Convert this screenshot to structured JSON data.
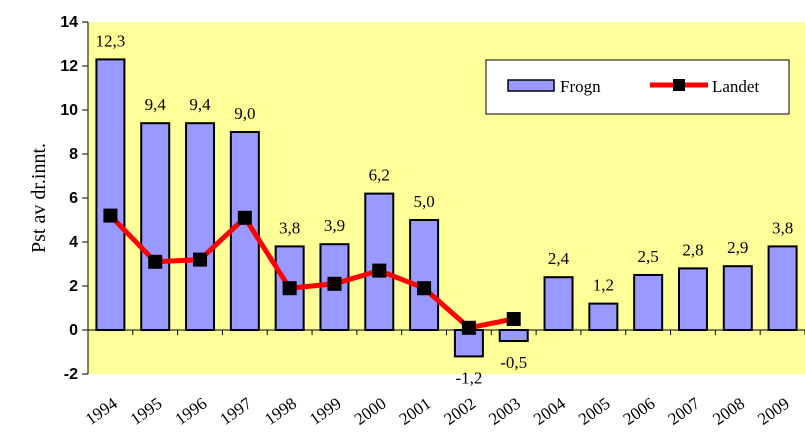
{
  "chart_data": {
    "type": "bar",
    "title": "",
    "xlabel": "",
    "ylabel": "Pst av dr.innt.",
    "categories": [
      "1994",
      "1995",
      "1996",
      "1997",
      "1998",
      "1999",
      "2000",
      "2001",
      "2002",
      "2003",
      "2004",
      "2005",
      "2006",
      "2007",
      "2008",
      "2009"
    ],
    "ylim": [
      -2,
      14
    ],
    "yticks": [
      -2,
      0,
      2,
      4,
      6,
      8,
      10,
      12,
      14
    ],
    "legend_position": "top-right",
    "series": [
      {
        "name": "Frogn",
        "kind": "bar",
        "color": "#9999ff",
        "values": [
          12.3,
          9.4,
          9.4,
          9.0,
          3.8,
          3.9,
          6.2,
          5.0,
          -1.2,
          -0.5,
          2.4,
          1.2,
          2.5,
          2.8,
          2.9,
          3.8
        ],
        "labels": [
          "12,3",
          "9,4",
          "9,4",
          "9,0",
          "3,8",
          "3,9",
          "6,2",
          "5,0",
          "-1,2",
          "-0,5",
          "2,4",
          "1,2",
          "2,5",
          "2,8",
          "2,9",
          "3,8"
        ]
      },
      {
        "name": "Landet",
        "kind": "line",
        "color": "#ff0000",
        "marker_color": "#000000",
        "values": [
          5.2,
          3.1,
          3.2,
          5.1,
          1.9,
          2.1,
          2.7,
          1.9,
          0.1,
          0.5,
          null,
          null,
          null,
          null,
          null,
          null
        ]
      }
    ],
    "plot_background": "#ffff99"
  }
}
